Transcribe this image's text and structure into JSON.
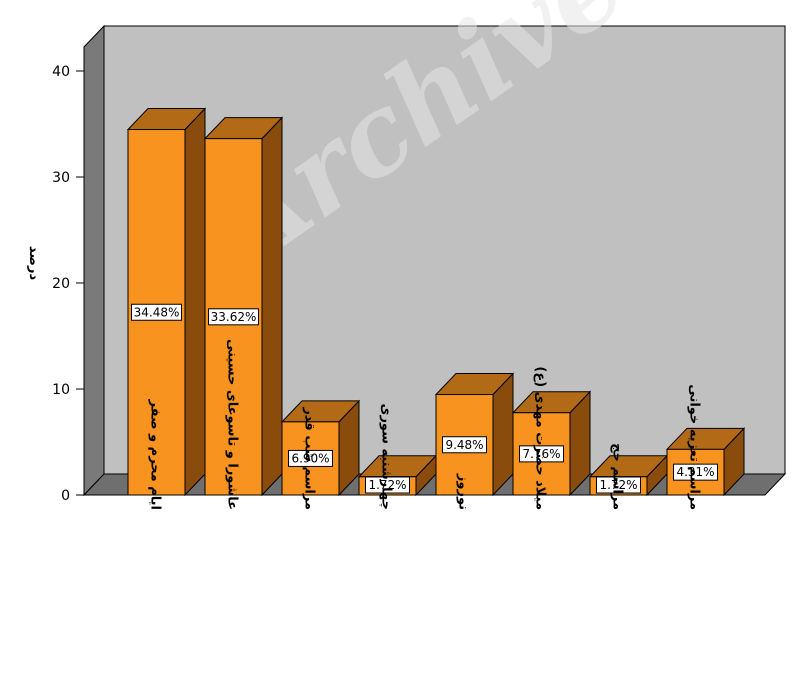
{
  "chart_data": {
    "type": "bar",
    "title": "",
    "xlabel": "",
    "ylabel": "درصد",
    "ylim": [
      0,
      40
    ],
    "yticks": [
      0,
      10,
      20,
      30,
      40
    ],
    "categories": [
      "ایام محرم و صفر",
      "عاشورا و تاسوعای حسینی",
      "مراسم شب قدر",
      "چهارشنبه سوری",
      "نوروز",
      "میلاد حضرت مهدی (ع)",
      "مراسم حج",
      "مراسم تعزیه خوانی"
    ],
    "values": [
      34.48,
      33.62,
      6.9,
      1.72,
      9.48,
      7.76,
      1.72,
      4.31
    ],
    "data_labels": [
      "34.48%",
      "33.62%",
      "6.90%",
      "1.72%",
      "9.48%",
      "7.76%",
      "1.72%",
      "4.31%"
    ],
    "grid": false,
    "legend": "none",
    "style": "3d",
    "colors": {
      "bar_front": "#f7931e",
      "bar_top": "#b36a17",
      "bar_side": "#8a4c0c",
      "back_wall": "#c0c0c0",
      "side_wall": "#7a7a7a",
      "floor": "#6f6f6f"
    }
  },
  "watermark": "Archive"
}
